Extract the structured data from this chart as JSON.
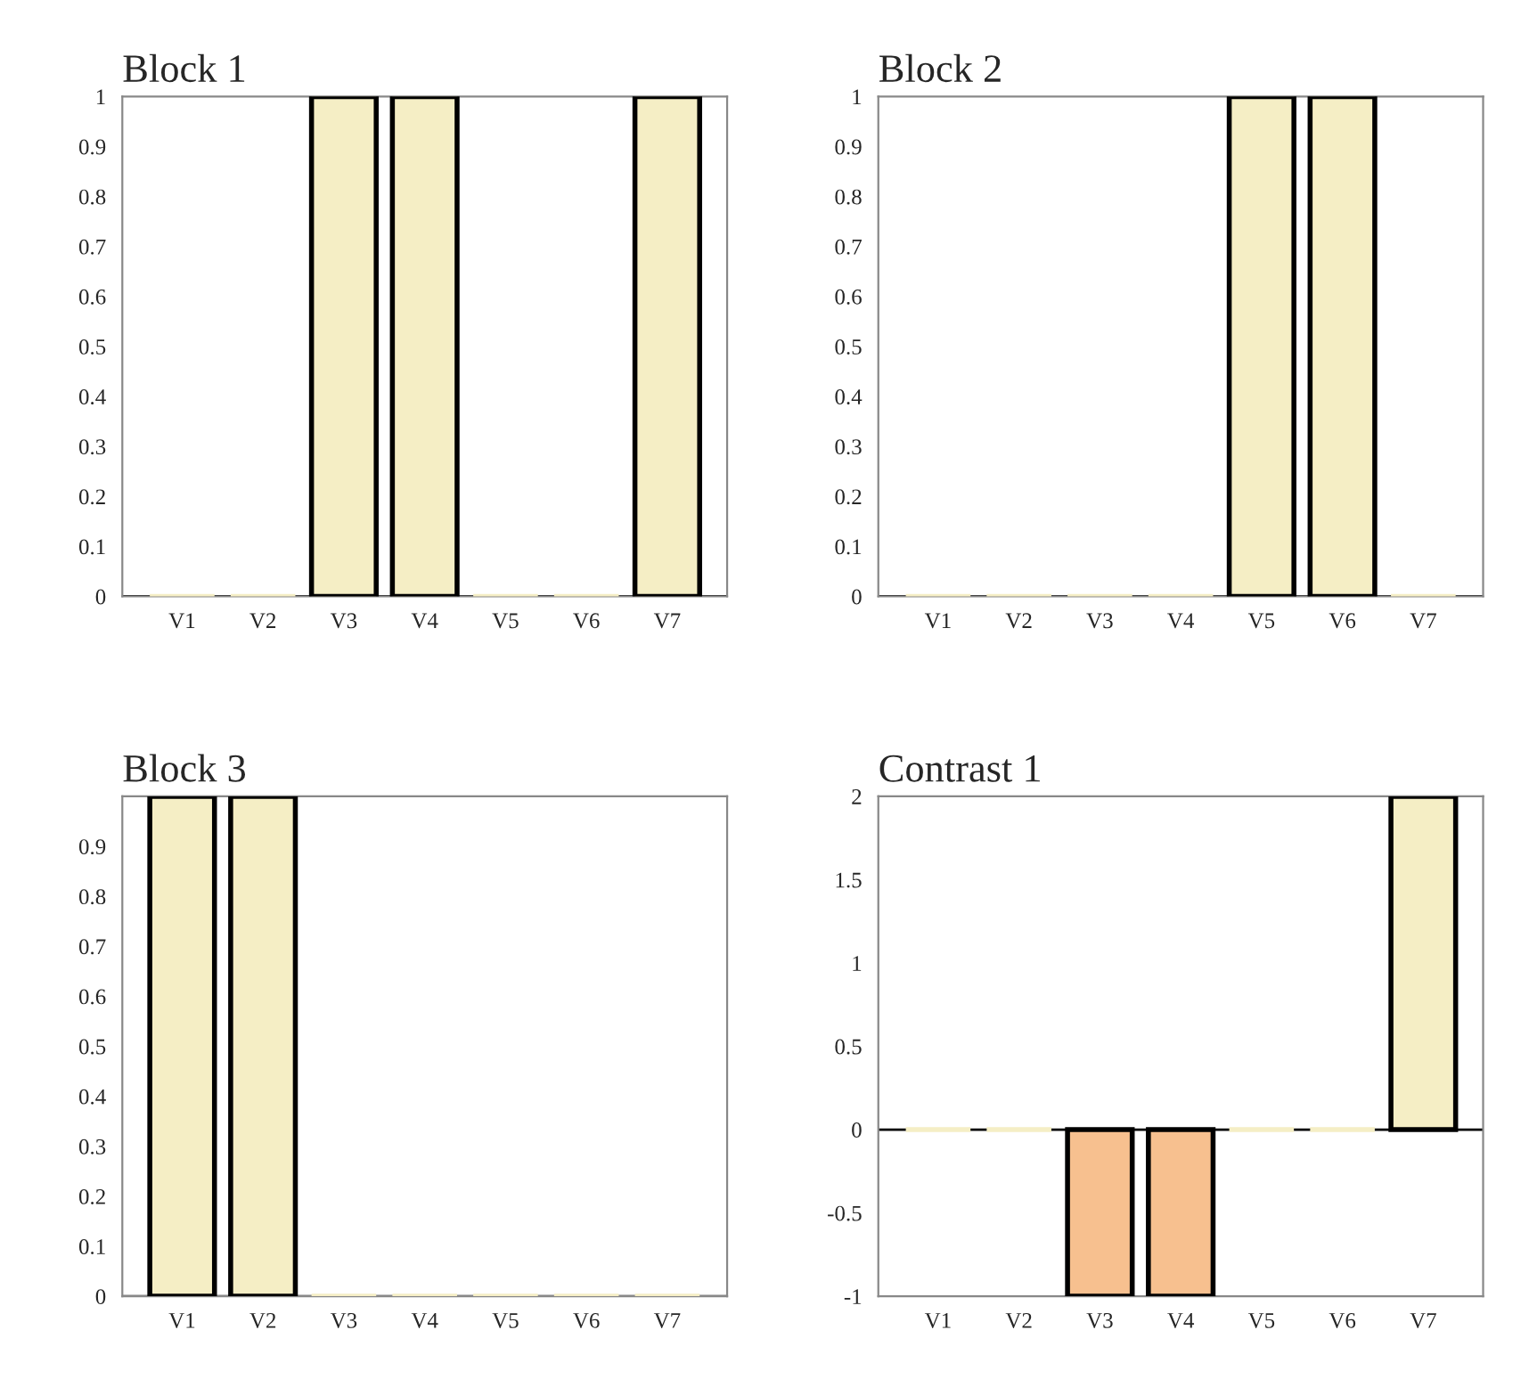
{
  "chart_data": [
    {
      "type": "bar",
      "title": "Block 1",
      "categories": [
        "V1",
        "V2",
        "V3",
        "V4",
        "V5",
        "V6",
        "V7"
      ],
      "values": [
        0,
        0,
        1,
        1,
        0,
        0,
        1
      ],
      "color": "#f5eec5",
      "ylim": [
        0,
        1
      ],
      "yticks": [
        0,
        0.1,
        0.2,
        0.3,
        0.4,
        0.5,
        0.6,
        0.7,
        0.8,
        0.9,
        1
      ]
    },
    {
      "type": "bar",
      "title": "Block 2",
      "categories": [
        "V1",
        "V2",
        "V3",
        "V4",
        "V5",
        "V6",
        "V7"
      ],
      "values": [
        0,
        0,
        0,
        0,
        1,
        1,
        0
      ],
      "color": "#f5eec5",
      "ylim": [
        0,
        1
      ],
      "yticks": [
        0,
        0.1,
        0.2,
        0.3,
        0.4,
        0.5,
        0.6,
        0.7,
        0.8,
        0.9,
        1
      ]
    },
    {
      "type": "bar",
      "title": "Block 3",
      "categories": [
        "V1",
        "V2",
        "V3",
        "V4",
        "V5",
        "V6",
        "V7"
      ],
      "values": [
        1,
        1,
        0,
        0,
        0,
        0,
        0
      ],
      "color": "#f5eec5",
      "ylim": [
        0,
        1
      ],
      "yticks": [
        0,
        0.1,
        0.2,
        0.3,
        0.4,
        0.5,
        0.6,
        0.7,
        0.8,
        0.9
      ]
    },
    {
      "type": "bar",
      "title": "Contrast 1",
      "categories": [
        "V1",
        "V2",
        "V3",
        "V4",
        "V5",
        "V6",
        "V7"
      ],
      "values": [
        0,
        0,
        -1,
        -1,
        0,
        0,
        2
      ],
      "colors": [
        "#f5eec5",
        "#f5eec5",
        "#f7c08f",
        "#f7c08f",
        "#f5eec5",
        "#f5eec5",
        "#f5eec5"
      ],
      "ylim": [
        -1,
        2
      ],
      "yticks": [
        -1,
        -0.5,
        0,
        0.5,
        1,
        1.5,
        2
      ]
    }
  ]
}
